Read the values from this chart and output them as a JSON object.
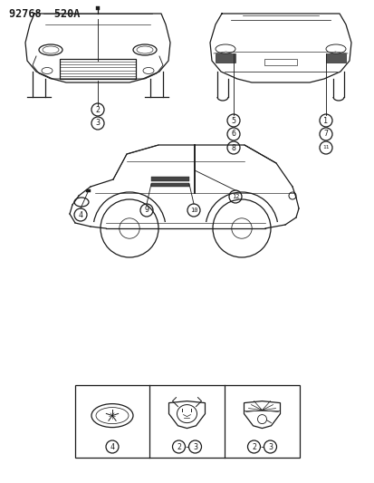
{
  "title": "92768  520A",
  "background_color": "#ffffff",
  "line_color": "#1a1a1a",
  "fig_width": 4.14,
  "fig_height": 5.33,
  "dpi": 100
}
